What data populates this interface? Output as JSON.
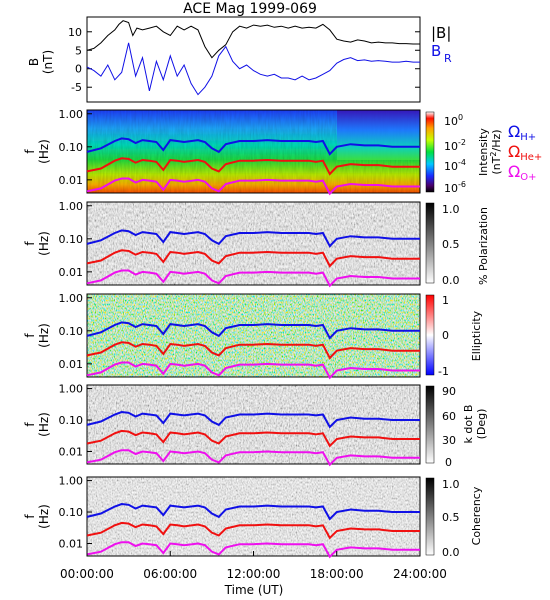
{
  "title": "ACE Mag 1999-069",
  "colors": {
    "black": "#000000",
    "blue": "#1010e6",
    "red": "#f01010",
    "magenta": "#ee10ee",
    "frame": "#000000"
  },
  "legend": {
    "b_abs": "|B|",
    "b_r": "B",
    "b_r_sub": "R",
    "omega": "Ω",
    "h_sub": "H+",
    "he_sub": "He+",
    "o_sub": "O+"
  },
  "x_axis": {
    "label": "Time (UT)",
    "ticks": [
      "00:00:00",
      "06:00:00",
      "12:00:00",
      "18:00:00",
      "24:00:00"
    ],
    "range_hours": [
      0,
      24
    ]
  },
  "chart_data": [
    {
      "type": "line",
      "panel": "B",
      "ylabel_line1": "B",
      "ylabel_line2": "(nT)",
      "ylim": [
        -9,
        14
      ],
      "yticks": [
        "10",
        "5",
        "0",
        "-5"
      ],
      "ytick_values": [
        10,
        5,
        0,
        -5
      ],
      "series": [
        {
          "name": "|B|",
          "color": "black",
          "x": [
            0,
            0.5,
            1,
            1.5,
            2,
            2.3,
            2.6,
            3,
            3.3,
            3.6,
            4,
            4.5,
            5,
            5.5,
            6,
            6.5,
            7,
            7.5,
            8,
            8.5,
            9,
            9.5,
            10,
            10.5,
            11,
            11.5,
            12,
            12.5,
            13,
            13.5,
            14,
            14.5,
            15,
            15.5,
            16,
            16.5,
            17,
            17.5,
            18,
            18.5,
            19,
            19.5,
            20,
            20.5,
            21,
            21.5,
            22,
            22.5,
            23,
            23.5,
            24
          ],
          "y": [
            5,
            5.5,
            7,
            9,
            10.5,
            12,
            13,
            12.5,
            9,
            11,
            10.5,
            11,
            11.5,
            10,
            9,
            11.5,
            10.5,
            11.5,
            10.5,
            6,
            3,
            5,
            6.5,
            10,
            11.5,
            11,
            11.8,
            11.5,
            11.8,
            11.2,
            11.5,
            11,
            11.5,
            11,
            11.2,
            11,
            12,
            10.5,
            8,
            7.5,
            7.2,
            7.8,
            7.5,
            7,
            7.2,
            7,
            7,
            6.8,
            6.8,
            6.7,
            6.7
          ]
        },
        {
          "name": "B_R",
          "color": "blue",
          "x": [
            0,
            0.5,
            1,
            1.5,
            2,
            2.5,
            3,
            3.5,
            4,
            4.5,
            5,
            5.5,
            6,
            6.5,
            7,
            7.5,
            8,
            8.5,
            9,
            9.5,
            10,
            10.5,
            11,
            11.5,
            12,
            12.5,
            13,
            13.5,
            14,
            14.5,
            15,
            15.5,
            16,
            16.5,
            17,
            17.5,
            18,
            18.5,
            19,
            19.5,
            20,
            20.5,
            21,
            21.5,
            22,
            22.5,
            23,
            23.5,
            24
          ],
          "y": [
            0.5,
            -0.5,
            -2,
            1,
            -3,
            -1,
            7,
            -2,
            3,
            -6,
            2,
            -3,
            3.5,
            -2,
            1,
            -4,
            -7,
            -5,
            -2,
            3.5,
            6,
            2,
            0,
            1,
            -0.5,
            -1.5,
            -2,
            -1.5,
            -2.5,
            -2.5,
            -3,
            -2,
            -3,
            -2.5,
            -1.5,
            -0.5,
            1.5,
            2.5,
            3,
            2.2,
            2.4,
            2,
            2.2,
            2,
            1.8,
            1.8,
            2,
            1.8,
            1.8
          ]
        }
      ]
    },
    {
      "type": "heatmap",
      "panel": "Intensity",
      "ylabel_line1": "f",
      "ylabel_line2": "(Hz)",
      "yticks": [
        "1.00",
        "0.10",
        "0.01"
      ],
      "ytick_values": [
        1,
        0.1,
        0.01
      ],
      "ylim": [
        0.004,
        1.3
      ],
      "yscale": "log",
      "colorbar_label": "Intensity",
      "colorbar_unit_a": "(nT",
      "colorbar_unit_sup": "2",
      "colorbar_unit_b": "/Hz)",
      "colorbar_ticks_base": [
        "10",
        "10",
        "10",
        "10"
      ],
      "colorbar_ticks_exp": [
        "0",
        "-2",
        "-4",
        "-6"
      ],
      "colormap": "rainbow"
    },
    {
      "type": "heatmap",
      "panel": "Polarization",
      "ylabel_line1": "f",
      "ylabel_line2": "(Hz)",
      "yticks": [
        "1.00",
        "0.10",
        "0.01"
      ],
      "ytick_values": [
        1,
        0.1,
        0.01
      ],
      "ylim": [
        0.004,
        1.3
      ],
      "yscale": "log",
      "colorbar_label": "% Polarization",
      "colorbar_ticks": [
        "1.0",
        "0.5",
        "0.0"
      ],
      "colormap": "gray"
    },
    {
      "type": "heatmap",
      "panel": "Ellipticity",
      "ylabel_line1": "f",
      "ylabel_line2": "(Hz)",
      "yticks": [
        "1.00",
        "0.10",
        "0.01"
      ],
      "ytick_values": [
        1,
        0.1,
        0.01
      ],
      "ylim": [
        0.004,
        1.3
      ],
      "yscale": "log",
      "colorbar_label": "Ellipticity",
      "colorbar_ticks": [
        "1",
        "0",
        "-1"
      ],
      "colormap": "red-white-blue"
    },
    {
      "type": "heatmap",
      "panel": "k dot B",
      "ylabel_line1": "f",
      "ylabel_line2": "(Hz)",
      "yticks": [
        "1.00",
        "0.10",
        "0.01"
      ],
      "ytick_values": [
        1,
        0.1,
        0.01
      ],
      "ylim": [
        0.004,
        1.3
      ],
      "yscale": "log",
      "colorbar_label": "k dot B",
      "colorbar_label2": "(Deg)",
      "colorbar_ticks": [
        "90",
        "60",
        "30",
        "0"
      ],
      "colormap": "gray"
    },
    {
      "type": "heatmap",
      "panel": "Coherency",
      "ylabel_line1": "f",
      "ylabel_line2": "(Hz)",
      "yticks": [
        "1.00",
        "0.10",
        "0.01"
      ],
      "ytick_values": [
        1,
        0.1,
        0.01
      ],
      "ylim": [
        0.004,
        1.3
      ],
      "yscale": "log",
      "colorbar_label": "Coherency",
      "colorbar_ticks": [
        "1.0",
        "0.5",
        "0.0"
      ],
      "colormap": "gray"
    }
  ],
  "gyrofrequency_curves": {
    "x": [
      0,
      1,
      2,
      2.5,
      3,
      3.5,
      4,
      4.5,
      5,
      5.5,
      6,
      6.5,
      7,
      8,
      8.5,
      9,
      9.5,
      10,
      11,
      12,
      13,
      14,
      15,
      16,
      16.5,
      17,
      17.5,
      18,
      19,
      20,
      21,
      22,
      23,
      24
    ],
    "H+": [
      0.07,
      0.09,
      0.15,
      0.18,
      0.17,
      0.13,
      0.16,
      0.15,
      0.14,
      0.08,
      0.16,
      0.15,
      0.14,
      0.16,
      0.14,
      0.09,
      0.07,
      0.12,
      0.15,
      0.15,
      0.16,
      0.15,
      0.15,
      0.15,
      0.14,
      0.15,
      0.06,
      0.1,
      0.12,
      0.11,
      0.11,
      0.1,
      0.1,
      0.1
    ],
    "He+": [
      0.018,
      0.022,
      0.038,
      0.045,
      0.043,
      0.033,
      0.04,
      0.038,
      0.035,
      0.02,
      0.04,
      0.038,
      0.035,
      0.04,
      0.035,
      0.022,
      0.018,
      0.03,
      0.038,
      0.038,
      0.04,
      0.038,
      0.038,
      0.038,
      0.035,
      0.038,
      0.015,
      0.025,
      0.03,
      0.028,
      0.028,
      0.025,
      0.025,
      0.025
    ],
    "O+": [
      0.0045,
      0.0055,
      0.0095,
      0.011,
      0.011,
      0.0083,
      0.01,
      0.0095,
      0.0088,
      0.005,
      0.01,
      0.0095,
      0.0088,
      0.01,
      0.0088,
      0.0055,
      0.0045,
      0.0075,
      0.0095,
      0.0095,
      0.01,
      0.0095,
      0.0095,
      0.0095,
      0.0088,
      0.0095,
      0.0038,
      0.0063,
      0.0075,
      0.007,
      0.007,
      0.0063,
      0.0063,
      0.0063
    ]
  }
}
